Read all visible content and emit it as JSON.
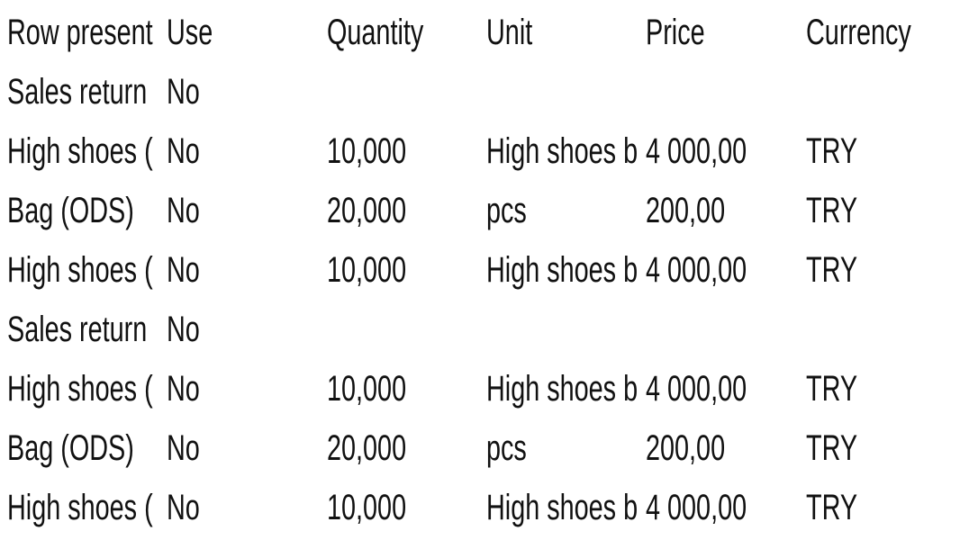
{
  "table": {
    "columns": [
      "Row present",
      "Use",
      "Quantity",
      "Unit",
      "Price",
      "Currency"
    ],
    "rows": [
      [
        "Sales return",
        "No",
        "",
        "",
        "",
        ""
      ],
      [
        "High shoes (",
        "No",
        "10,000",
        "High shoes b",
        "4 000,00",
        "TRY"
      ],
      [
        "Bag (ODS)",
        "No",
        "20,000",
        "pcs",
        "200,00",
        "TRY"
      ],
      [
        "High shoes (",
        "No",
        "10,000",
        "High shoes b",
        "4 000,00",
        "TRY"
      ],
      [
        "Sales return",
        "No",
        "",
        "",
        "",
        ""
      ],
      [
        "High shoes (",
        "No",
        "10,000",
        "High shoes b",
        "4 000,00",
        "TRY"
      ],
      [
        "Bag (ODS)",
        "No",
        "20,000",
        "pcs",
        "200,00",
        "TRY"
      ],
      [
        "High shoes (",
        "No",
        "10,000",
        "High shoes b",
        "4 000,00",
        "TRY"
      ]
    ]
  }
}
